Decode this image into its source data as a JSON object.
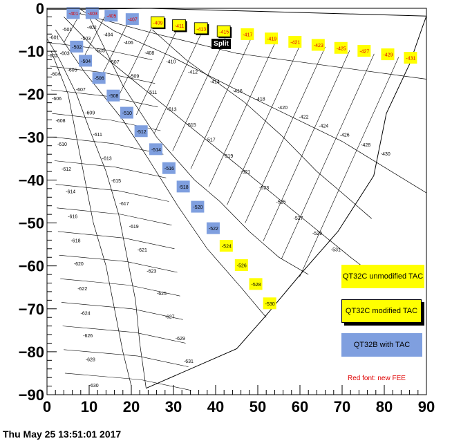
{
  "chart_data": {
    "type": "diagram",
    "x_axis": {
      "range": [
        0,
        90
      ],
      "ticks": [
        "0",
        "10",
        "20",
        "30",
        "40",
        "50",
        "60",
        "70",
        "80",
        "90"
      ]
    },
    "y_axis": {
      "range": [
        -90,
        0
      ],
      "ticks": [
        "0",
        "−10",
        "−20",
        "−30",
        "−40",
        "−50",
        "−60",
        "−70",
        "−80",
        "−90"
      ]
    },
    "cells": [
      {
        "label": "-401",
        "x": 6.3,
        "y": -1.2,
        "fill": "qt32b",
        "red": true
      },
      {
        "label": "-403",
        "x": 10.8,
        "y": -1.2,
        "fill": "qt32b",
        "red": true
      },
      {
        "label": "-405",
        "x": 15.3,
        "y": -1.8,
        "fill": "qt32b",
        "red": true
      },
      {
        "label": "-407",
        "x": 20.3,
        "y": -2.6,
        "fill": "qt32b",
        "red": true
      },
      {
        "label": "-409",
        "x": 26.3,
        "y": -3.4,
        "fill": "mod",
        "red": true
      },
      {
        "label": "-411",
        "x": 31.4,
        "y": -4.1,
        "fill": "mod",
        "red": true
      },
      {
        "label": "-413",
        "x": 36.6,
        "y": -4.8,
        "fill": "mod",
        "red": true
      },
      {
        "label": "-415",
        "x": 42.0,
        "y": -5.5,
        "fill": "mod",
        "red": true
      },
      {
        "label": "-417",
        "x": 47.6,
        "y": -6.1,
        "fill": "unmod",
        "red": true
      },
      {
        "label": "-419",
        "x": 53.3,
        "y": -7.1,
        "fill": "unmod",
        "red": true
      },
      {
        "label": "-421",
        "x": 58.9,
        "y": -7.9,
        "fill": "unmod",
        "red": true
      },
      {
        "label": "-423",
        "x": 64.4,
        "y": -8.6,
        "fill": "unmod",
        "red": true
      },
      {
        "label": "-425",
        "x": 69.8,
        "y": -9.3,
        "fill": "unmod",
        "red": true
      },
      {
        "label": "-427",
        "x": 75.3,
        "y": -10.0,
        "fill": "unmod",
        "red": true
      },
      {
        "label": "-429",
        "x": 80.9,
        "y": -10.8,
        "fill": "unmod",
        "red": true
      },
      {
        "label": "-431",
        "x": 86.3,
        "y": -11.6,
        "fill": "unmod",
        "red": true
      },
      {
        "label": "-402",
        "x": 10.6,
        "y": -4.4,
        "fill": "none",
        "red": false
      },
      {
        "label": "-404",
        "x": 14.5,
        "y": -6.1,
        "fill": "none",
        "red": false
      },
      {
        "label": "-406",
        "x": 19.3,
        "y": -8.0,
        "fill": "none",
        "red": false
      },
      {
        "label": "-408",
        "x": 24.3,
        "y": -10.4,
        "fill": "none",
        "red": false
      },
      {
        "label": "-410",
        "x": 29.4,
        "y": -12.4,
        "fill": "none",
        "red": false
      },
      {
        "label": "-412",
        "x": 34.6,
        "y": -14.8,
        "fill": "none",
        "red": false
      },
      {
        "label": "-414",
        "x": 39.8,
        "y": -17.1,
        "fill": "none",
        "red": false
      },
      {
        "label": "-416",
        "x": 45.2,
        "y": -19.2,
        "fill": "none",
        "red": false
      },
      {
        "label": "-418",
        "x": 50.6,
        "y": -21.1,
        "fill": "none",
        "red": false
      },
      {
        "label": "-420",
        "x": 55.9,
        "y": -23.1,
        "fill": "none",
        "red": false
      },
      {
        "label": "-422",
        "x": 60.9,
        "y": -25.3,
        "fill": "none",
        "red": false
      },
      {
        "label": "-424",
        "x": 65.6,
        "y": -27.4,
        "fill": "none",
        "red": false
      },
      {
        "label": "-426",
        "x": 70.6,
        "y": -29.5,
        "fill": "none",
        "red": false
      },
      {
        "label": "-428",
        "x": 75.6,
        "y": -31.8,
        "fill": "none",
        "red": false
      },
      {
        "label": "-430",
        "x": 80.3,
        "y": -33.9,
        "fill": "none",
        "red": false
      },
      {
        "label": "-501",
        "x": 4.8,
        "y": -4.9,
        "fill": "none",
        "red": false
      },
      {
        "label": "-503",
        "x": 9.2,
        "y": -7.0,
        "fill": "none",
        "red": false
      },
      {
        "label": "-505",
        "x": 12.6,
        "y": -9.8,
        "fill": "none",
        "red": false
      },
      {
        "label": "-507",
        "x": 16.0,
        "y": -12.5,
        "fill": "none",
        "red": false
      },
      {
        "label": "-509",
        "x": 20.7,
        "y": -15.8,
        "fill": "none",
        "red": false
      },
      {
        "label": "-511",
        "x": 25.0,
        "y": -19.6,
        "fill": "none",
        "red": false
      },
      {
        "label": "-513",
        "x": 29.6,
        "y": -23.5,
        "fill": "none",
        "red": false
      },
      {
        "label": "-515",
        "x": 34.2,
        "y": -27.1,
        "fill": "none",
        "red": false
      },
      {
        "label": "-517",
        "x": 38.8,
        "y": -30.6,
        "fill": "none",
        "red": false
      },
      {
        "label": "-519",
        "x": 43.0,
        "y": -34.4,
        "fill": "none",
        "red": false
      },
      {
        "label": "-521",
        "x": 47.1,
        "y": -38.1,
        "fill": "none",
        "red": false
      },
      {
        "label": "-523",
        "x": 51.5,
        "y": -41.8,
        "fill": "none",
        "red": false
      },
      {
        "label": "-525",
        "x": 55.5,
        "y": -45.1,
        "fill": "none",
        "red": false
      },
      {
        "label": "-527",
        "x": 59.6,
        "y": -48.9,
        "fill": "none",
        "red": false
      },
      {
        "label": "-529",
        "x": 64.1,
        "y": -52.4,
        "fill": "none",
        "red": false
      },
      {
        "label": "-531",
        "x": 68.5,
        "y": -56.2,
        "fill": "none",
        "red": false
      },
      {
        "label": "-502",
        "x": 7.1,
        "y": -9.0,
        "fill": "qt32b",
        "red": false
      },
      {
        "label": "-504",
        "x": 9.2,
        "y": -12.3,
        "fill": "qt32b",
        "red": false
      },
      {
        "label": "-506",
        "x": 12.4,
        "y": -16.3,
        "fill": "qt32b",
        "red": false
      },
      {
        "label": "-508",
        "x": 15.8,
        "y": -20.4,
        "fill": "qt32b",
        "red": false
      },
      {
        "label": "-510",
        "x": 19.0,
        "y": -24.4,
        "fill": "qt32b",
        "red": false
      },
      {
        "label": "-512",
        "x": 22.4,
        "y": -28.7,
        "fill": "qt32b",
        "red": false
      },
      {
        "label": "-514",
        "x": 25.9,
        "y": -32.9,
        "fill": "qt32b",
        "red": false
      },
      {
        "label": "-516",
        "x": 29.0,
        "y": -37.3,
        "fill": "qt32b",
        "red": false
      },
      {
        "label": "-518",
        "x": 32.4,
        "y": -41.6,
        "fill": "qt32b",
        "red": false
      },
      {
        "label": "-520",
        "x": 35.8,
        "y": -46.3,
        "fill": "qt32b",
        "red": false
      },
      {
        "label": "-522",
        "x": 39.5,
        "y": -51.3,
        "fill": "qt32b",
        "red": false
      },
      {
        "label": "-524",
        "x": 42.6,
        "y": -55.4,
        "fill": "unmod",
        "red": false
      },
      {
        "label": "-526",
        "x": 46.2,
        "y": -59.9,
        "fill": "unmod",
        "red": false
      },
      {
        "label": "-528",
        "x": 49.6,
        "y": -64.3,
        "fill": "unmod",
        "red": false
      },
      {
        "label": "-530",
        "x": 52.9,
        "y": -68.8,
        "fill": "unmod",
        "red": false
      },
      {
        "label": "-601",
        "x": 1.7,
        "y": -6.8,
        "fill": "none",
        "red": false
      },
      {
        "label": "-602",
        "x": 1.4,
        "y": -11.0,
        "fill": "none",
        "red": false
      },
      {
        "label": "-603",
        "x": 4.2,
        "y": -10.5,
        "fill": "none",
        "red": false
      },
      {
        "label": "-604",
        "x": 2.0,
        "y": -15.3,
        "fill": "none",
        "red": false
      },
      {
        "label": "-605",
        "x": 6.0,
        "y": -14.3,
        "fill": "none",
        "red": false
      },
      {
        "label": "-606",
        "x": 2.3,
        "y": -21.0,
        "fill": "none",
        "red": false
      },
      {
        "label": "-607",
        "x": 8.0,
        "y": -18.9,
        "fill": "none",
        "red": false
      },
      {
        "label": "-608",
        "x": 3.2,
        "y": -26.2,
        "fill": "none",
        "red": false
      },
      {
        "label": "-609",
        "x": 10.2,
        "y": -24.3,
        "fill": "none",
        "red": false
      },
      {
        "label": "-610",
        "x": 3.6,
        "y": -31.6,
        "fill": "none",
        "red": false
      },
      {
        "label": "-611",
        "x": 12.0,
        "y": -29.4,
        "fill": "none",
        "red": false
      },
      {
        "label": "-612",
        "x": 4.6,
        "y": -37.4,
        "fill": "none",
        "red": false
      },
      {
        "label": "-613",
        "x": 14.2,
        "y": -34.9,
        "fill": "none",
        "red": false
      },
      {
        "label": "-614",
        "x": 5.6,
        "y": -42.7,
        "fill": "none",
        "red": false
      },
      {
        "label": "-615",
        "x": 16.4,
        "y": -40.2,
        "fill": "none",
        "red": false
      },
      {
        "label": "-616",
        "x": 6.1,
        "y": -48.5,
        "fill": "none",
        "red": false
      },
      {
        "label": "-617",
        "x": 18.3,
        "y": -45.5,
        "fill": "none",
        "red": false
      },
      {
        "label": "-618",
        "x": 6.8,
        "y": -54.1,
        "fill": "none",
        "red": false
      },
      {
        "label": "-619",
        "x": 20.6,
        "y": -50.8,
        "fill": "none",
        "red": false
      },
      {
        "label": "-620",
        "x": 7.5,
        "y": -59.5,
        "fill": "none",
        "red": false
      },
      {
        "label": "-621",
        "x": 22.6,
        "y": -56.3,
        "fill": "none",
        "red": false
      },
      {
        "label": "-622",
        "x": 8.4,
        "y": -65.3,
        "fill": "none",
        "red": false
      },
      {
        "label": "-623",
        "x": 24.8,
        "y": -61.2,
        "fill": "none",
        "red": false
      },
      {
        "label": "-624",
        "x": 9.1,
        "y": -71.0,
        "fill": "none",
        "red": false
      },
      {
        "label": "-625",
        "x": 27.2,
        "y": -66.4,
        "fill": "none",
        "red": false
      },
      {
        "label": "-626",
        "x": 9.7,
        "y": -76.2,
        "fill": "none",
        "red": false
      },
      {
        "label": "-627",
        "x": 29.1,
        "y": -71.8,
        "fill": "none",
        "red": false
      },
      {
        "label": "-628",
        "x": 10.3,
        "y": -81.8,
        "fill": "none",
        "red": false
      },
      {
        "label": "-629",
        "x": 31.6,
        "y": -76.9,
        "fill": "none",
        "red": false
      },
      {
        "label": "-630",
        "x": 11.1,
        "y": -87.8,
        "fill": "none",
        "red": false
      },
      {
        "label": "-631",
        "x": 33.6,
        "y": -82.2,
        "fill": "none",
        "red": false
      }
    ],
    "colors": {
      "unmod": "#ffff00",
      "mod": "#ffff00",
      "qt32b": "#7f9fdf",
      "red_font": "#e00000"
    },
    "annotations": {
      "split": "Split"
    },
    "legend": {
      "unmodified": "QT32C unmodified TAC",
      "modified": "QT32C modified TAC",
      "qt32b": "QT32B with TAC",
      "red_font_note": "Red font: new FEE"
    },
    "timestamp": "Thu May 25 13:51:01 2017"
  }
}
